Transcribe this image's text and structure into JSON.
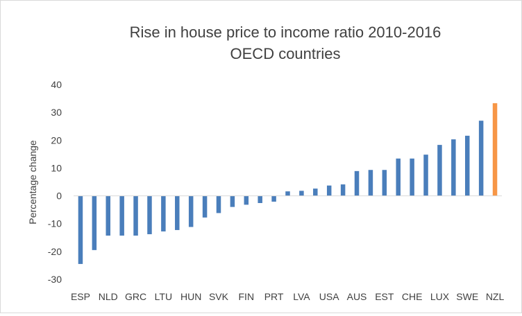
{
  "chart_data": {
    "type": "bar",
    "title_line1": "Rise in house price to income ratio 2010-2016",
    "title_line2": "OECD countries",
    "ylabel": "Percentage change",
    "xlabel": "",
    "ylim": [
      -30,
      40
    ],
    "yticks": [
      40,
      30,
      20,
      10,
      0,
      -10,
      -20,
      -30
    ],
    "yticklabels": [
      "40",
      "30",
      "20",
      "10",
      "0",
      "-10",
      "-20",
      "-30"
    ],
    "grid": false,
    "legend": "none",
    "colors": {
      "default": "#4a7ebb",
      "highlight": "#f79646",
      "axis": "#d9d9d9",
      "text": "#404040"
    },
    "categories": [
      "ESP",
      "",
      "NLD",
      "",
      "GRC",
      "",
      "LTU",
      "",
      "HUN",
      "",
      "SVK",
      "",
      "FIN",
      "",
      "PRT",
      "",
      "LVA",
      "",
      "USA",
      "",
      "AUS",
      "",
      "EST",
      "",
      "CHE",
      "",
      "LUX",
      "",
      "SWE",
      "",
      "NZL"
    ],
    "values": [
      -24.5,
      -19.5,
      -14.3,
      -14.3,
      -14.3,
      -13.8,
      -12.8,
      -12.3,
      -11.2,
      -7.8,
      -6.2,
      -4,
      -3.2,
      -2.6,
      -2.1,
      1.6,
      1.8,
      2.6,
      3.7,
      4.1,
      8.9,
      9.3,
      9.3,
      13.4,
      13.4,
      14.8,
      18.3,
      20.3,
      21.6,
      27.0,
      33.3
    ],
    "highlight_index": 30
  }
}
